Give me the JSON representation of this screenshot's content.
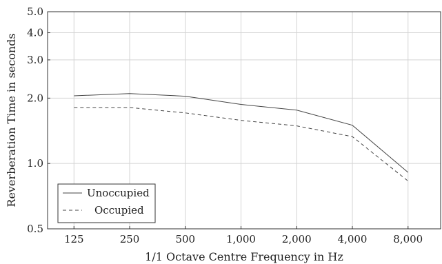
{
  "chart_data": {
    "type": "line",
    "title": "",
    "xlabel": "1/1 Octave Centre Frequency in Hz",
    "ylabel": "Reverberation Time in seconds",
    "x_scale": "log",
    "y_scale": "log",
    "xlim": [
      90,
      12000
    ],
    "ylim": [
      0.5,
      5.0
    ],
    "grid": true,
    "legend_position": "bottom-left",
    "x_ticks": [
      125,
      250,
      500,
      1000,
      2000,
      4000,
      8000
    ],
    "x_tick_labels": [
      "125",
      "250",
      "500",
      "1,000",
      "2,000",
      "4,000",
      "8,000"
    ],
    "y_ticks": [
      0.5,
      1.0,
      2.0,
      3.0,
      4.0,
      5.0
    ],
    "y_tick_labels": [
      "0.5",
      "1.0",
      "2.0",
      "3.0",
      "4.0",
      "5.0"
    ],
    "x": [
      125,
      250,
      500,
      1000,
      2000,
      4000,
      8000
    ],
    "series": [
      {
        "name": "Unoccupied",
        "style": "solid",
        "color": "#444444",
        "values": [
          2.05,
          2.1,
          2.04,
          1.87,
          1.76,
          1.5,
          0.91
        ]
      },
      {
        "name": "Occupied",
        "style": "dashed",
        "color": "#444444",
        "values": [
          1.81,
          1.81,
          1.71,
          1.58,
          1.49,
          1.33,
          0.83
        ]
      }
    ]
  }
}
